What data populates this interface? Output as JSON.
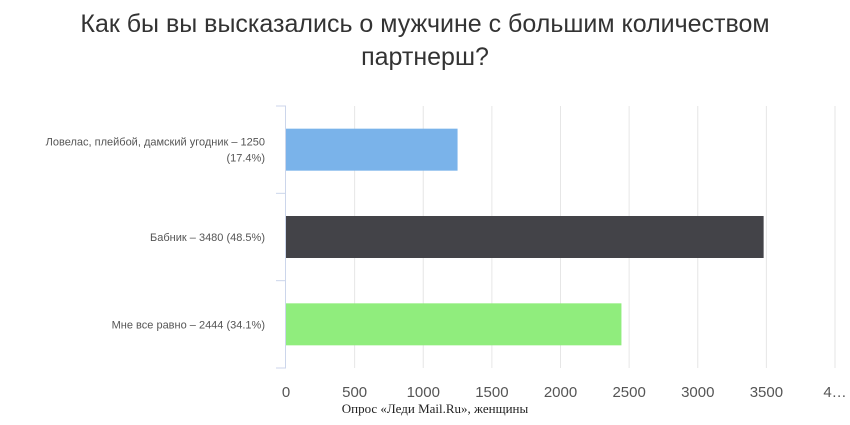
{
  "chart_data": {
    "type": "bar",
    "orientation": "horizontal",
    "title_lines": [
      "Как бы вы высказались о мужчине с большим количеством",
      "партнерш?"
    ],
    "categories": [
      {
        "label_lines": [
          "Ловелас, плейбой, дамский угодник – 1250",
          "(17.4%)"
        ],
        "value": 1250,
        "color": "#7ab3ea"
      },
      {
        "label_lines": [
          "Бабник – 3480 (48.5%)"
        ],
        "value": 3480,
        "color": "#434348"
      },
      {
        "label_lines": [
          "Мне все равно – 2444 (34.1%)"
        ],
        "value": 2444,
        "color": "#90ed7d"
      }
    ],
    "values": [
      1250,
      3480,
      2444
    ],
    "x_ticks": [
      "0",
      "500",
      "1000",
      "1500",
      "2000",
      "2500",
      "3000",
      "3500",
      "4…"
    ],
    "xlim": [
      0,
      4000
    ],
    "grid": true,
    "source": "Опрос «Леди Mail.Ru», женщины"
  }
}
